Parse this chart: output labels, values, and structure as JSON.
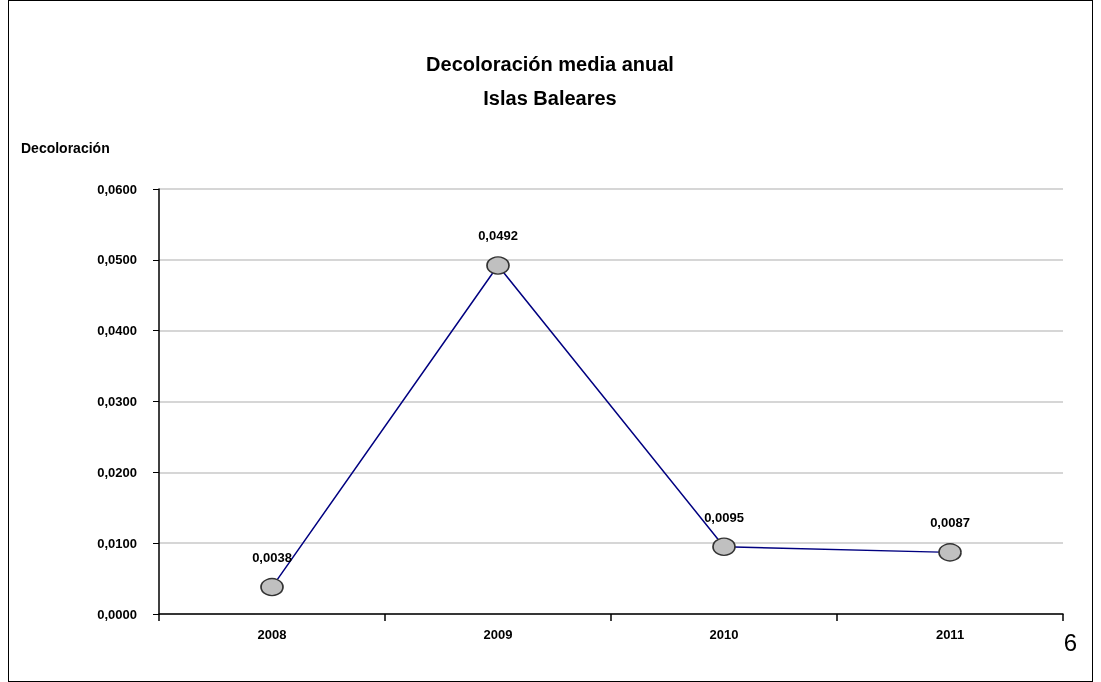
{
  "chart_data": {
    "type": "line",
    "title": "Decoloración media anual",
    "subtitle": "Islas Baleares",
    "ylabel": "Decoloración",
    "categories": [
      "2008",
      "2009",
      "2010",
      "2011"
    ],
    "series": [
      {
        "color": "#000080",
        "values": [
          0.0038,
          0.0492,
          0.0095,
          0.0087
        ],
        "value_labels": [
          "0,0038",
          "0,0492",
          "0,0095",
          "0,0087"
        ]
      }
    ],
    "ylim": [
      0,
      0.06
    ],
    "yticks": [
      {
        "value": 0,
        "label": "0,0000"
      },
      {
        "value": 0.01,
        "label": "0,0100"
      },
      {
        "value": 0.02,
        "label": "0,0200"
      },
      {
        "value": 0.03,
        "label": "0,0300"
      },
      {
        "value": 0.04,
        "label": "0,0400"
      },
      {
        "value": 0.05,
        "label": "0,0500"
      },
      {
        "value": 0.06,
        "label": "0,0600"
      }
    ],
    "grid": "y",
    "marker": "circle",
    "line_style": "solid",
    "annotations": [
      "6"
    ]
  }
}
